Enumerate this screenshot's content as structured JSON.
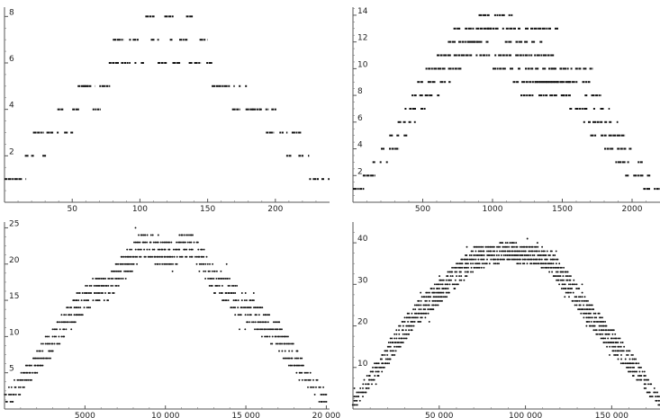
{
  "chart_data": [
    {
      "type": "scatter",
      "title": "",
      "xlabel": "",
      "ylabel": "",
      "xlim": [
        0,
        240
      ],
      "ylim": [
        0,
        8.4
      ],
      "xticks": [
        50,
        100,
        150,
        200
      ],
      "xtick_labels": [
        "50",
        "100",
        "150",
        "200"
      ],
      "yticks": [
        2,
        4,
        6,
        8
      ],
      "ytick_labels": [
        "2",
        "4",
        "6",
        "8"
      ],
      "grid": false,
      "point_shape": "short horizontal dash",
      "point_color": "#111111",
      "runs": [
        [
          0,
          16,
          1
        ],
        [
          15,
          22,
          2
        ],
        [
          21,
          29,
          3
        ],
        [
          28,
          31,
          2
        ],
        [
          31,
          35,
          3
        ],
        [
          34,
          40,
          3
        ],
        [
          39,
          45,
          4
        ],
        [
          44,
          51,
          3
        ],
        [
          50,
          57,
          4
        ],
        [
          54,
          62,
          5
        ],
        [
          58,
          67,
          5
        ],
        [
          65,
          71,
          4
        ],
        [
          70,
          78,
          5
        ],
        [
          77,
          85,
          6
        ],
        [
          80,
          88,
          7
        ],
        [
          86,
          93,
          6
        ],
        [
          92,
          99,
          7
        ],
        [
          96,
          103,
          6
        ],
        [
          104,
          111,
          8
        ],
        [
          108,
          114,
          7
        ],
        [
          113,
          120,
          6
        ],
        [
          118,
          125,
          8
        ],
        [
          119,
          124,
          7
        ],
        [
          124,
          130,
          6
        ],
        [
          129,
          136,
          7
        ],
        [
          134,
          139,
          8
        ],
        [
          136,
          145,
          6
        ],
        [
          144,
          150,
          7
        ],
        [
          149,
          154,
          6
        ],
        [
          153,
          160,
          5
        ],
        [
          158,
          164,
          5
        ],
        [
          162,
          170,
          5
        ],
        [
          168,
          174,
          4
        ],
        [
          173,
          180,
          5
        ],
        [
          178,
          184,
          4
        ],
        [
          183,
          189,
          4
        ],
        [
          188,
          195,
          4
        ],
        [
          193,
          199,
          3
        ],
        [
          197,
          204,
          4
        ],
        [
          203,
          209,
          3
        ],
        [
          208,
          213,
          2
        ],
        [
          212,
          219,
          3
        ],
        [
          217,
          225,
          2
        ],
        [
          225,
          240,
          1
        ]
      ]
    },
    {
      "type": "scatter",
      "title": "",
      "xlabel": "",
      "ylabel": "",
      "xlim": [
        0,
        2200
      ],
      "ylim": [
        0,
        14.6
      ],
      "xticks": [
        500,
        1000,
        1500,
        2000
      ],
      "xtick_labels": [
        "500",
        "1000",
        "1500",
        "2000"
      ],
      "yticks": [
        2,
        4,
        6,
        8,
        10,
        12,
        14
      ],
      "ytick_labels": [
        "2",
        "4",
        "6",
        "8",
        "10",
        "12",
        "14"
      ],
      "grid": false,
      "point_shape": "short horizontal dash",
      "point_color": "#111111",
      "runs": [
        [
          0,
          80,
          1
        ],
        [
          70,
          160,
          2
        ],
        [
          140,
          250,
          3
        ],
        [
          200,
          330,
          4
        ],
        [
          260,
          420,
          5
        ],
        [
          320,
          450,
          6
        ],
        [
          370,
          520,
          7
        ],
        [
          420,
          620,
          8
        ],
        [
          460,
          700,
          9
        ],
        [
          520,
          780,
          10
        ],
        [
          600,
          860,
          11
        ],
        [
          680,
          900,
          12
        ],
        [
          720,
          1000,
          13
        ],
        [
          900,
          1150,
          14
        ],
        [
          820,
          1400,
          12
        ],
        [
          880,
          1450,
          11
        ],
        [
          960,
          1480,
          13
        ],
        [
          1000,
          1500,
          10
        ],
        [
          1100,
          1560,
          9
        ],
        [
          1200,
          1560,
          8
        ],
        [
          1300,
          1700,
          9
        ],
        [
          1400,
          1720,
          10
        ],
        [
          1500,
          1780,
          8
        ],
        [
          1550,
          1840,
          7
        ],
        [
          1650,
          1900,
          6
        ],
        [
          1700,
          1950,
          5
        ],
        [
          1800,
          2000,
          4
        ],
        [
          1880,
          2080,
          3
        ],
        [
          1950,
          2130,
          2
        ],
        [
          2080,
          2200,
          1
        ]
      ]
    },
    {
      "type": "scatter",
      "title": "",
      "xlabel": "",
      "ylabel": "",
      "xlim": [
        0,
        20200
      ],
      "ylim": [
        0,
        25.8
      ],
      "xticks": [
        5000,
        10000,
        15000,
        20000
      ],
      "xtick_labels": [
        "5000",
        "10 000",
        "15 000",
        "20 000"
      ],
      "yticks": [
        5,
        10,
        15,
        20,
        25
      ],
      "ytick_labels": [
        "5",
        "10",
        "15",
        "20",
        "25"
      ],
      "grid": false,
      "point_shape": "small dot",
      "point_color": "#111111",
      "band": [
        [
          0,
          1,
          2
        ],
        [
          800,
          3,
          2
        ],
        [
          1500,
          5,
          2
        ],
        [
          2500,
          8,
          3
        ],
        [
          3500,
          11,
          3
        ],
        [
          4500,
          14,
          3
        ],
        [
          5500,
          16,
          3
        ],
        [
          6500,
          17,
          3
        ],
        [
          7200,
          19,
          3
        ],
        [
          8000,
          21,
          3
        ],
        [
          8600,
          23,
          3
        ],
        [
          9300,
          22,
          3
        ],
        [
          10000,
          21,
          3
        ],
        [
          10800,
          22,
          3
        ],
        [
          11500,
          23,
          3
        ],
        [
          12100,
          21,
          3
        ],
        [
          13000,
          18,
          3
        ],
        [
          14000,
          16,
          3
        ],
        [
          15000,
          14,
          3
        ],
        [
          16000,
          12,
          3
        ],
        [
          17000,
          10,
          3
        ],
        [
          18000,
          7,
          3
        ],
        [
          19000,
          4,
          2
        ],
        [
          20000,
          1,
          2
        ]
      ]
    },
    {
      "type": "scatter",
      "title": "",
      "xlabel": "",
      "ylabel": "",
      "xlim": [
        0,
        178000
      ],
      "ylim": [
        0,
        45
      ],
      "xticks": [
        50000,
        100000,
        150000
      ],
      "xtick_labels": [
        "50 000",
        "100 000",
        "150 000"
      ],
      "yticks": [
        10,
        20,
        30,
        40
      ],
      "ytick_labels": [
        "10",
        "20",
        "30",
        "40"
      ],
      "grid": false,
      "point_shape": "small dot",
      "point_color": "#111111",
      "band": [
        [
          0,
          1,
          2
        ],
        [
          8000,
          6,
          3
        ],
        [
          16000,
          11,
          4
        ],
        [
          25000,
          16,
          5
        ],
        [
          35000,
          22,
          5
        ],
        [
          45000,
          26,
          5
        ],
        [
          55000,
          30,
          5
        ],
        [
          62000,
          33,
          5
        ],
        [
          70000,
          36,
          5
        ],
        [
          80000,
          37,
          4
        ],
        [
          90000,
          38,
          4
        ],
        [
          100000,
          37,
          4
        ],
        [
          108000,
          37,
          4
        ],
        [
          115000,
          35,
          5
        ],
        [
          125000,
          30,
          5
        ],
        [
          135000,
          24,
          5
        ],
        [
          145000,
          19,
          5
        ],
        [
          155000,
          14,
          5
        ],
        [
          165000,
          9,
          4
        ],
        [
          172000,
          5,
          3
        ],
        [
          178000,
          2,
          2
        ]
      ]
    }
  ]
}
